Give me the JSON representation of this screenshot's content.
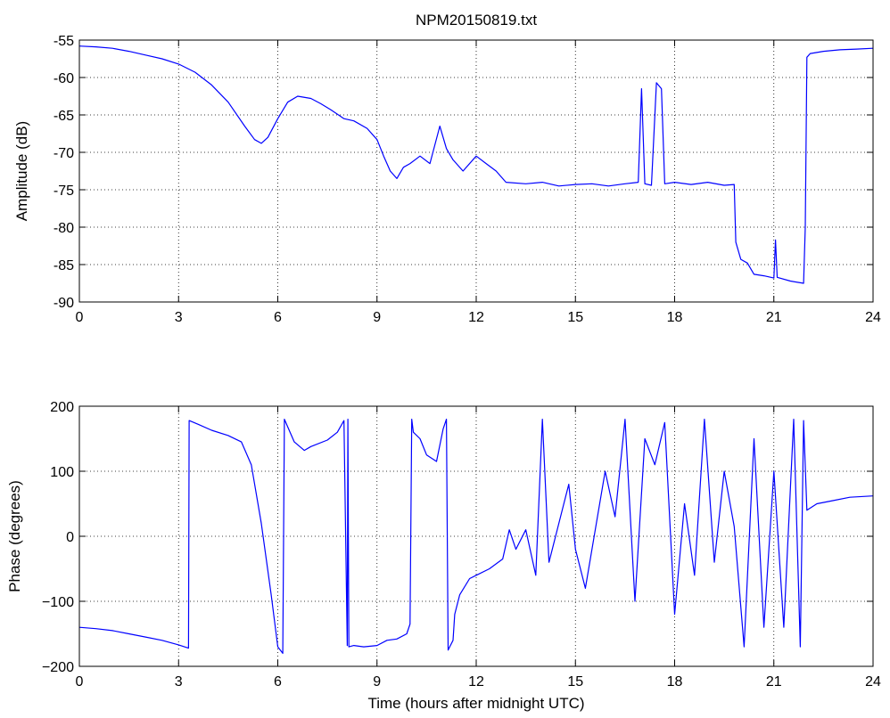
{
  "chart_data": [
    {
      "type": "line",
      "title": "NPM20150819.txt",
      "xlabel": "",
      "ylabel": "Amplitude (dB)",
      "xlim": [
        0,
        24
      ],
      "ylim": [
        -90,
        -55
      ],
      "xticks": [
        "0",
        "3",
        "6",
        "9",
        "12",
        "15",
        "18",
        "21",
        "24"
      ],
      "yticks": [
        "-55",
        "-60",
        "-65",
        "-70",
        "-75",
        "-80",
        "-85",
        "-90"
      ],
      "grid": true,
      "line_color": "#0000ff",
      "series": [
        {
          "x": [
            0,
            0.5,
            1.0,
            1.5,
            2.0,
            2.5,
            3.0,
            3.5,
            4.0,
            4.5,
            5.0,
            5.3,
            5.5,
            5.7,
            6.0,
            6.3,
            6.6,
            7.0,
            7.3,
            7.6,
            8.0,
            8.3,
            8.7,
            9.0,
            9.2,
            9.4,
            9.6,
            9.8,
            10.0,
            10.3,
            10.6,
            10.9,
            11.1,
            11.3,
            11.6,
            12.0,
            12.3,
            12.6,
            12.9,
            13.5,
            14.0,
            14.5,
            15.0,
            15.5,
            16.0,
            16.5,
            16.9,
            17.0,
            17.1,
            17.3,
            17.45,
            17.6,
            17.7,
            18.0,
            18.5,
            19.0,
            19.5,
            19.8,
            19.85,
            20.0,
            20.2,
            20.4,
            20.7,
            21.0,
            21.05,
            21.1,
            21.5,
            21.9,
            21.95,
            22.0,
            22.1,
            22.5,
            23.0,
            23.5,
            24.0
          ],
          "y": [
            -55.8,
            -55.9,
            -56.1,
            -56.5,
            -57.0,
            -57.5,
            -58.2,
            -59.3,
            -61.0,
            -63.3,
            -66.5,
            -68.3,
            -68.8,
            -68.0,
            -65.5,
            -63.3,
            -62.5,
            -62.8,
            -63.5,
            -64.3,
            -65.5,
            -65.8,
            -66.8,
            -68.3,
            -70.5,
            -72.5,
            -73.5,
            -72.0,
            -71.5,
            -70.5,
            -71.5,
            -66.5,
            -69.5,
            -71.0,
            -72.5,
            -70.5,
            -71.5,
            -72.5,
            -74.0,
            -74.2,
            -74.0,
            -74.5,
            -74.3,
            -74.2,
            -74.5,
            -74.2,
            -74.0,
            -61.5,
            -74.2,
            -74.4,
            -60.7,
            -61.5,
            -74.2,
            -74.0,
            -74.3,
            -74.0,
            -74.4,
            -74.3,
            -82.0,
            -84.3,
            -84.8,
            -86.3,
            -86.5,
            -86.8,
            -81.7,
            -86.7,
            -87.2,
            -87.5,
            -80.0,
            -57.3,
            -56.8,
            -56.5,
            -56.3,
            -56.2,
            -56.1
          ]
        }
      ]
    },
    {
      "type": "line",
      "title": "",
      "xlabel": "Time (hours after midnight UTC)",
      "ylabel": "Phase (degrees)",
      "xlim": [
        0,
        24
      ],
      "ylim": [
        -200,
        200
      ],
      "xticks": [
        "0",
        "3",
        "6",
        "9",
        "12",
        "15",
        "18",
        "21",
        "24"
      ],
      "yticks": [
        "200",
        "100",
        "0",
        "−100",
        "−200"
      ],
      "grid": true,
      "line_color": "#0000ff",
      "series": [
        {
          "x": [
            0,
            0.5,
            1.0,
            1.5,
            2.0,
            2.5,
            3.0,
            3.3,
            3.32,
            3.6,
            4.0,
            4.5,
            4.9,
            5.2,
            5.5,
            5.8,
            6.0,
            6.15,
            6.2,
            6.5,
            6.8,
            7.0,
            7.5,
            7.8,
            8.0,
            8.1,
            8.12,
            8.15,
            8.3,
            8.6,
            9.0,
            9.3,
            9.6,
            9.9,
            10.0,
            10.05,
            10.1,
            10.3,
            10.5,
            10.8,
            11.0,
            11.1,
            11.15,
            11.2,
            11.3,
            11.35,
            11.5,
            11.8,
            12.0,
            12.4,
            12.8,
            13.0,
            13.2,
            13.5,
            13.8,
            14.0,
            14.2,
            14.5,
            14.8,
            15.0,
            15.3,
            15.6,
            15.9,
            16.2,
            16.5,
            16.8,
            17.1,
            17.4,
            17.7,
            18.0,
            18.3,
            18.6,
            18.9,
            19.2,
            19.5,
            19.8,
            20.1,
            20.4,
            20.7,
            21.0,
            21.3,
            21.6,
            21.8,
            21.9,
            22.0,
            22.3,
            22.8,
            23.3,
            24.0
          ],
          "y": [
            -140,
            -142,
            -145,
            -150,
            -155,
            -160,
            -167,
            -172,
            178,
            172,
            163,
            155,
            145,
            110,
            20,
            -90,
            -170,
            -180,
            180,
            145,
            132,
            138,
            148,
            160,
            178,
            -168,
            180,
            -170,
            -168,
            -170,
            -168,
            -160,
            -158,
            -150,
            -135,
            180,
            160,
            150,
            125,
            115,
            165,
            180,
            -175,
            -170,
            -160,
            -120,
            -90,
            -65,
            -60,
            -50,
            -35,
            10,
            -20,
            10,
            -60,
            180,
            -40,
            20,
            80,
            -20,
            -80,
            10,
            100,
            30,
            180,
            -100,
            150,
            110,
            175,
            -120,
            50,
            -60,
            180,
            -40,
            100,
            15,
            -170,
            150,
            -140,
            100,
            -140,
            180,
            -170,
            178,
            40,
            50,
            55,
            60,
            62
          ]
        }
      ]
    }
  ]
}
